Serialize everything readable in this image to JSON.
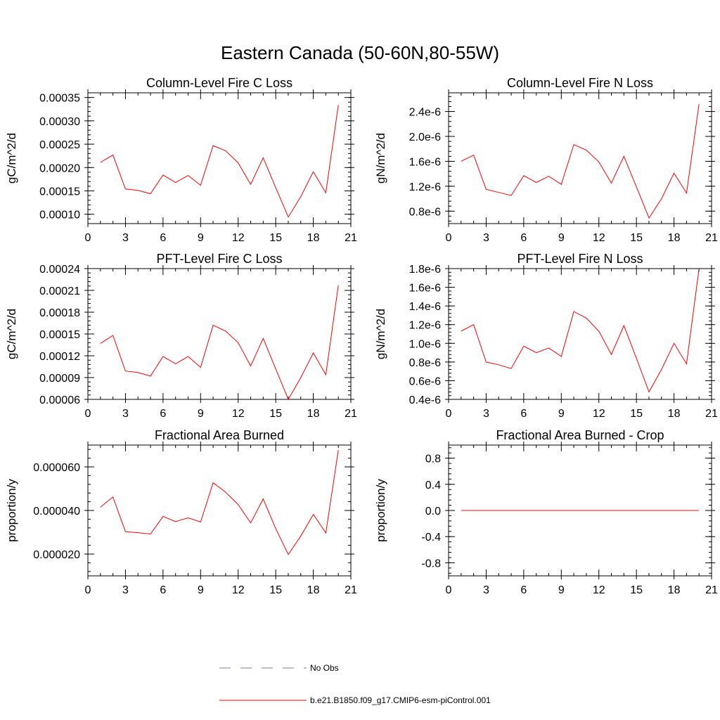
{
  "figure_title": "Eastern Canada (50-60N,80-55W)",
  "colors": {
    "series": "#ff0000",
    "obs": "#7a7aaa",
    "axis": "#000000"
  },
  "legend": [
    {
      "label": "No Obs",
      "style": "dashed",
      "color": "#7a7aaa"
    },
    {
      "label": "b.e21.B1850.f09_g17.CMIP6-esm-piControl.001",
      "style": "solid",
      "color": "#ff0000"
    }
  ],
  "chart_data": [
    {
      "type": "line",
      "title": "Column-Level Fire C Loss",
      "ylabel": "gC/m^2/d",
      "xlim": [
        0,
        21
      ],
      "xticks": [
        0,
        3,
        6,
        9,
        12,
        15,
        18,
        21
      ],
      "ylim": [
        8e-05,
        0.00036
      ],
      "yticks": [
        0.0001,
        0.00015,
        0.0002,
        0.00025,
        0.0003,
        0.00035
      ],
      "ytick_labels": [
        "0.00010",
        "0.00015",
        "0.00020",
        "0.00025",
        "0.00030",
        "0.00035"
      ],
      "x": [
        1,
        2,
        3,
        4,
        5,
        6,
        7,
        8,
        9,
        10,
        11,
        12,
        13,
        14,
        15,
        16,
        17,
        18,
        19,
        20
      ],
      "series": [
        {
          "name": "b.e21.B1850.f09_g17.CMIP6-esm-piControl.001",
          "values": [
            0.000211,
            0.000227,
            0.000154,
            0.000151,
            0.000144,
            0.000184,
            0.000168,
            0.000183,
            0.000162,
            0.000247,
            0.000236,
            0.00021,
            0.000164,
            0.000221,
            0.000157,
            9.4e-05,
            0.000138,
            0.000191,
            0.000146,
            0.000334
          ]
        }
      ]
    },
    {
      "type": "line",
      "title": "Column-Level Fire N Loss",
      "ylabel": "gN/m^2/d",
      "xlim": [
        0,
        21
      ],
      "xticks": [
        0,
        3,
        6,
        9,
        12,
        15,
        18,
        21
      ],
      "ylim": [
        6e-07,
        2.7e-06
      ],
      "yticks": [
        8e-07,
        1.2e-06,
        1.6e-06,
        2e-06,
        2.4e-06
      ],
      "ytick_labels": [
        "0.8e-6",
        "1.2e-6",
        "1.6e-6",
        "2.0e-6",
        "2.4e-6"
      ],
      "x": [
        1,
        2,
        3,
        4,
        5,
        6,
        7,
        8,
        9,
        10,
        11,
        12,
        13,
        14,
        15,
        16,
        17,
        18,
        19,
        20
      ],
      "series": [
        {
          "name": "b.e21.B1850.f09_g17.CMIP6-esm-piControl.001",
          "values": [
            1.6e-06,
            1.7e-06,
            1.15e-06,
            1.1e-06,
            1.05e-06,
            1.37e-06,
            1.26e-06,
            1.36e-06,
            1.23e-06,
            1.87e-06,
            1.78e-06,
            1.59e-06,
            1.25e-06,
            1.68e-06,
            1.19e-06,
            6.9e-07,
            1e-06,
            1.41e-06,
            1.09e-06,
            2.52e-06
          ]
        }
      ]
    },
    {
      "type": "line",
      "title": "PFT-Level Fire C Loss",
      "ylabel": "gC/m^2/d",
      "xlim": [
        0,
        21
      ],
      "xticks": [
        0,
        3,
        6,
        9,
        12,
        15,
        18,
        21
      ],
      "ylim": [
        6e-05,
        0.00024
      ],
      "yticks": [
        6e-05,
        9e-05,
        0.00012,
        0.00015,
        0.00018,
        0.00021,
        0.00024
      ],
      "ytick_labels": [
        "0.00006",
        "0.00009",
        "0.00012",
        "0.00015",
        "0.00018",
        "0.00021",
        "0.00024"
      ],
      "x": [
        1,
        2,
        3,
        4,
        5,
        6,
        7,
        8,
        9,
        10,
        11,
        12,
        13,
        14,
        15,
        16,
        17,
        18,
        19,
        20
      ],
      "series": [
        {
          "name": "b.e21.B1850.f09_g17.CMIP6-esm-piControl.001",
          "values": [
            0.000137,
            0.000148,
            9.9e-05,
            9.7e-05,
            9.2e-05,
            0.000119,
            0.000109,
            0.000119,
            0.000104,
            0.000162,
            0.000154,
            0.000138,
            0.000106,
            0.000144,
            0.000102,
            6e-05,
            9e-05,
            0.000124,
            9.4e-05,
            0.000217
          ]
        }
      ]
    },
    {
      "type": "line",
      "title": "PFT-Level Fire N Loss",
      "ylabel": "gN/m^2/d",
      "xlim": [
        0,
        21
      ],
      "xticks": [
        0,
        3,
        6,
        9,
        12,
        15,
        18,
        21
      ],
      "ylim": [
        4e-07,
        1.8e-06
      ],
      "yticks": [
        4e-07,
        6e-07,
        8e-07,
        1e-06,
        1.2e-06,
        1.4e-06,
        1.6e-06,
        1.8e-06
      ],
      "ytick_labels": [
        "0.4e-6",
        "0.6e-6",
        "0.8e-6",
        "1.0e-6",
        "1.2e-6",
        "1.4e-6",
        "1.6e-6",
        "1.8e-6"
      ],
      "x": [
        1,
        2,
        3,
        4,
        5,
        6,
        7,
        8,
        9,
        10,
        11,
        12,
        13,
        14,
        15,
        16,
        17,
        18,
        19,
        20
      ],
      "series": [
        {
          "name": "b.e21.B1850.f09_g17.CMIP6-esm-piControl.001",
          "values": [
            1.13e-06,
            1.2e-06,
            8e-07,
            7.7e-07,
            7.3e-07,
            9.7e-07,
            9e-07,
            9.5e-07,
            8.6e-07,
            1.34e-06,
            1.27e-06,
            1.13e-06,
            8.8e-07,
            1.19e-06,
            8.4e-07,
            4.8e-07,
            7.2e-07,
            1e-06,
            7.8e-07,
            1.8e-06
          ]
        }
      ]
    },
    {
      "type": "line",
      "title": "Fractional Area Burned",
      "ylabel": "proportion/y",
      "xlim": [
        0,
        21
      ],
      "xticks": [
        0,
        3,
        6,
        9,
        12,
        15,
        18,
        21
      ],
      "ylim": [
        1e-05,
        7e-05
      ],
      "yticks": [
        2e-05,
        4e-05,
        6e-05
      ],
      "ytick_labels": [
        "0.000020",
        "0.000040",
        "0.000060"
      ],
      "x": [
        1,
        2,
        3,
        4,
        5,
        6,
        7,
        8,
        9,
        10,
        11,
        12,
        13,
        14,
        15,
        16,
        17,
        18,
        19,
        20
      ],
      "series": [
        {
          "name": "b.e21.B1850.f09_g17.CMIP6-esm-piControl.001",
          "values": [
            4.15e-05,
            4.62e-05,
            3.03e-05,
            2.98e-05,
            2.92e-05,
            3.73e-05,
            3.49e-05,
            3.66e-05,
            3.47e-05,
            5.27e-05,
            4.84e-05,
            4.27e-05,
            3.43e-05,
            4.53e-05,
            3.17e-05,
            1.98e-05,
            2.83e-05,
            3.82e-05,
            2.97e-05,
            6.77e-05
          ]
        }
      ]
    },
    {
      "type": "line",
      "title": "Fractional Area Burned - Crop",
      "ylabel": "proportion/y",
      "xlim": [
        0,
        21
      ],
      "xticks": [
        0,
        3,
        6,
        9,
        12,
        15,
        18,
        21
      ],
      "ylim": [
        -1.0,
        1.0
      ],
      "yticks": [
        -0.8,
        -0.4,
        0.0,
        0.4,
        0.8
      ],
      "ytick_labels": [
        "-0.8",
        "-0.4",
        "0.0",
        "0.4",
        "0.8"
      ],
      "x": [
        1,
        2,
        3,
        4,
        5,
        6,
        7,
        8,
        9,
        10,
        11,
        12,
        13,
        14,
        15,
        16,
        17,
        18,
        19,
        20
      ],
      "series": [
        {
          "name": "b.e21.B1850.f09_g17.CMIP6-esm-piControl.001",
          "values": [
            0,
            0,
            0,
            0,
            0,
            0,
            0,
            0,
            0,
            0,
            0,
            0,
            0,
            0,
            0,
            0,
            0,
            0,
            0,
            0
          ]
        }
      ]
    }
  ]
}
